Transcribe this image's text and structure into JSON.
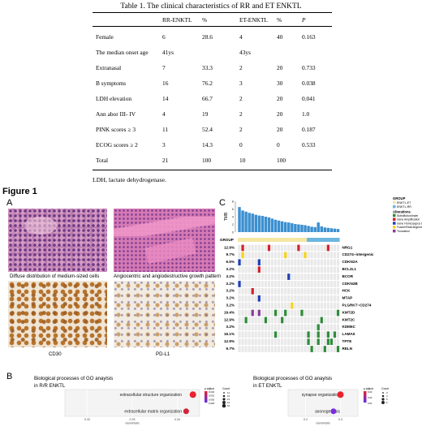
{
  "table": {
    "title": "Table 1. The clinical characteristics of RR and ET ENKTL",
    "headers": [
      "",
      "RR-ENKTL",
      "%",
      "ET-ENKTL",
      "%",
      "P"
    ],
    "rows": [
      [
        "Female",
        "6",
        "28.6",
        "4",
        "40",
        "0.163"
      ],
      [
        "The median onset age",
        "41ys",
        "",
        "43ys",
        "",
        ""
      ],
      [
        "Extranasal",
        "7",
        "33.3",
        "2",
        "20",
        "0.733"
      ],
      [
        "B symptoms",
        "16",
        "76.2",
        "3",
        "30",
        "0.038"
      ],
      [
        "LDH elevation",
        "14",
        "66.7",
        "2",
        "20",
        "0.041"
      ],
      [
        "Ann abor III- IV",
        "4",
        "19",
        "2",
        "20",
        "1.0"
      ],
      [
        "PINK scores  ≥  3",
        "11",
        "52.4",
        "2",
        "20",
        "0.187"
      ],
      [
        "ECOG scores  ≥  2",
        "3",
        "14.3",
        "0",
        "0",
        "0.533"
      ],
      [
        "Total",
        "21",
        "100",
        "10",
        "100",
        ""
      ]
    ],
    "note": "LDH, lactate dehydrogenase."
  },
  "figure": {
    "title": "Figure 1",
    "panel_a": {
      "letter": "A",
      "captions": [
        "Diffuse distribution of medium-sized cells",
        "Angiocentric and angiodestructive growth pattern",
        "CD30",
        "PD-L1"
      ]
    },
    "panel_b": {
      "letter": "B",
      "left_title_1": "Biological processes of GO anaylsis",
      "left_title_2": "in R/R ENKTL",
      "right_title_1": "Biological processes of GO anaylsis",
      "right_title_2": "in ET ENKTL",
      "xlabel": "GeneRatio"
    },
    "panel_c": {
      "letter": "C",
      "tmb_label": "TMB",
      "group_label": "GROUP",
      "legend": {
        "group_title": "GROUP",
        "groups": [
          {
            "label": "ENKTL-ET",
            "color": "#f3e7a3"
          },
          {
            "label": "ENKTL-RR",
            "color": "#6cb6e0"
          }
        ],
        "alt_title": "Alterations",
        "alterations": [
          {
            "label": "Substitution/Indel",
            "color": "#2e8b3a"
          },
          {
            "label": "Gene Amplification",
            "color": "#d4202a"
          },
          {
            "label": "Gene Homozygous Deletion",
            "color": "#1f3fb5"
          },
          {
            "label": "Fusion/Rearrangement",
            "color": "#f4d21c"
          },
          {
            "label": "Truncation",
            "color": "#8b3a9b"
          }
        ]
      }
    }
  },
  "chart_data": [
    {
      "type": "bar",
      "title": "",
      "ylabel": "TMB",
      "ylim": [
        0,
        8
      ],
      "yticks": [
        "0",
        "2",
        "4",
        "6",
        "8"
      ],
      "values": [
        6.5,
        5.6,
        5.3,
        5.0,
        4.8,
        4.5,
        4.3,
        4.2,
        4.0,
        3.8,
        3.5,
        3.2,
        3.0,
        2.8,
        2.6,
        2.5,
        2.3,
        2.1,
        2.0,
        1.9,
        1.8,
        1.6,
        1.4,
        1.3,
        2.5,
        1.5,
        1.2,
        1.1,
        1.0,
        0.9,
        0.8
      ]
    },
    {
      "type": "heatmap",
      "title": "",
      "group_label": "GROUP",
      "sample_count": 31,
      "group_split_after": 21,
      "genes": [
        {
          "name": "NRG1",
          "pct": "12.9%",
          "hits": [
            [
              1,
              "amp"
            ],
            [
              9,
              "amp"
            ],
            [
              18,
              "amp"
            ],
            [
              27,
              "amp"
            ]
          ]
        },
        {
          "name": "CD274~intergenic",
          "pct": "9.7%",
          "hits": [
            [
              1,
              "fus"
            ],
            [
              14,
              "fus"
            ],
            [
              20,
              "fus"
            ]
          ]
        },
        {
          "name": "CDKN2A",
          "pct": "6.5%",
          "hits": [
            [
              0,
              "del"
            ],
            [
              6,
              "del"
            ]
          ]
        },
        {
          "name": "BCL2L1",
          "pct": "3.2%",
          "hits": [
            [
              6,
              "amp"
            ]
          ]
        },
        {
          "name": "BCOR",
          "pct": "3.2%",
          "hits": [
            [
              15,
              "del"
            ]
          ]
        },
        {
          "name": "CDKN2B",
          "pct": "3.2%",
          "hits": [
            [
              0,
              "del"
            ]
          ]
        },
        {
          "name": "HCK",
          "pct": "3.2%",
          "hits": [
            [
              4,
              "amp"
            ]
          ]
        },
        {
          "name": "MTAP",
          "pct": "3.2%",
          "hits": [
            [
              6,
              "del"
            ]
          ]
        },
        {
          "name": "PLGRKT~CD274",
          "pct": "3.2%",
          "hits": [
            [
              16,
              "fus"
            ]
          ]
        },
        {
          "name": "KMT2D",
          "pct": "19.4%",
          "hits": [
            [
              4,
              "trunc"
            ],
            [
              6,
              "trunc"
            ],
            [
              11,
              "sub"
            ],
            [
              14,
              "sub"
            ],
            [
              19,
              "sub"
            ],
            [
              30,
              "sub"
            ]
          ]
        },
        {
          "name": "KMT2C",
          "pct": "12.9%",
          "hits": [
            [
              2,
              "sub"
            ],
            [
              8,
              "sub"
            ],
            [
              13,
              "sub"
            ],
            [
              25,
              "sub"
            ]
          ]
        },
        {
          "name": "KDM6C",
          "pct": "3.2%",
          "hits": [
            [
              24,
              "sub"
            ]
          ]
        },
        {
          "name": "LAMA5",
          "pct": "16.1%",
          "hits": [
            [
              11,
              "sub"
            ],
            [
              21,
              "sub"
            ],
            [
              24,
              "sub"
            ],
            [
              27,
              "sub"
            ],
            [
              29,
              "sub"
            ]
          ]
        },
        {
          "name": "TPTE",
          "pct": "12.9%",
          "hits": [
            [
              21,
              "sub"
            ],
            [
              24,
              "sub"
            ],
            [
              27,
              "sub"
            ],
            [
              28,
              "sub"
            ]
          ]
        },
        {
          "name": "RELN",
          "pct": "9.7%",
          "hits": [
            [
              22,
              "sub"
            ],
            [
              26,
              "sub"
            ],
            [
              30,
              "sub"
            ]
          ]
        }
      ]
    },
    {
      "type": "scatter",
      "title": "",
      "xlabel": "GeneRatio",
      "xticks": [
        "0.32",
        "0.33",
        "0.34"
      ],
      "xlim": [
        0.315,
        0.345
      ],
      "categories": [
        "extracellular structure organization",
        "extracellular matrix organization"
      ],
      "points": [
        {
          "term": "extracellular structure organization",
          "x": 0.3435,
          "size": 4,
          "padj": 0.0032
        },
        {
          "term": "extracellular matrix organization",
          "x": 0.342,
          "size": 3.5,
          "padj": 0.003
        }
      ],
      "legend": {
        "color_title": "p.adjust",
        "color_ticks": [
          "0.034",
          "0.032",
          "0.030",
          "0.028"
        ],
        "size_title": "Count",
        "size_ticks": [
          "11",
          "12",
          "13",
          "14",
          "15"
        ]
      }
    },
    {
      "type": "scatter",
      "title": "",
      "xlabel": "GeneRatio",
      "xticks": [
        "0.2",
        "0.3"
      ],
      "xlim": [
        0.15,
        0.35
      ],
      "categories": [
        "synapse organization",
        "axonogenesis"
      ],
      "points": [
        {
          "term": "synapse organization",
          "x": 0.3,
          "size": 4,
          "padj": 0.009
        },
        {
          "term": "axonogenesis",
          "x": 0.28,
          "size": 3.5,
          "padj": 0.03
        }
      ],
      "legend": {
        "color_title": "p.adjust",
        "color_ticks": [
          "0.03",
          "0.02",
          "0.01"
        ],
        "size_title": "Count",
        "size_ticks": [
          "3",
          "4",
          "5",
          "6"
        ]
      }
    }
  ]
}
